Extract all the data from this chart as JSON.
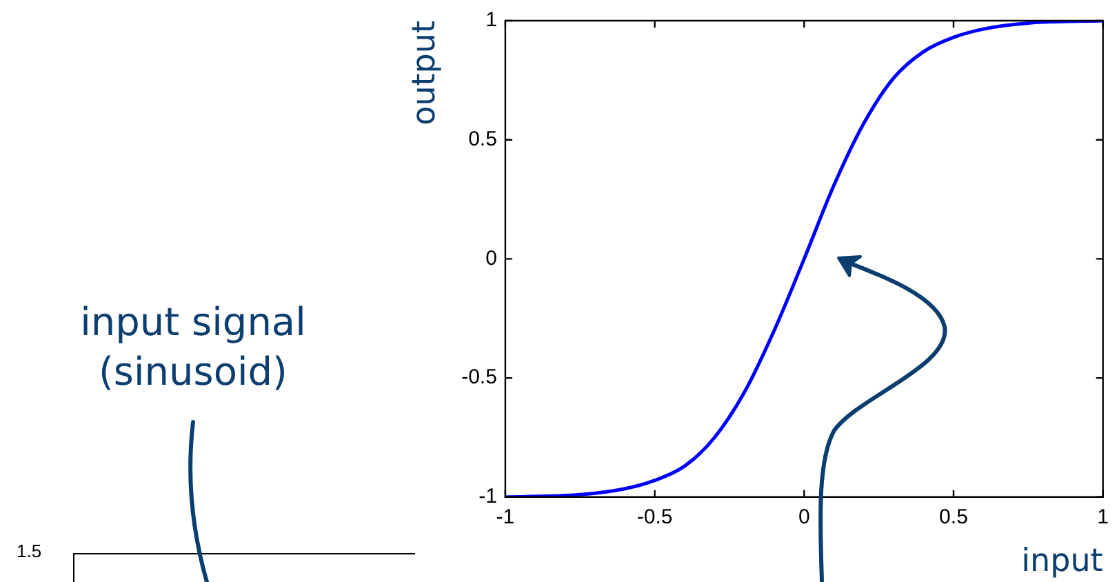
{
  "chart_data": [
    {
      "type": "line",
      "xlabel": "input",
      "ylabel": "output",
      "x": [
        -1,
        -0.75,
        -0.6,
        -0.5,
        -0.4,
        -0.3,
        -0.2,
        -0.1,
        0,
        0.1,
        0.2,
        0.3,
        0.4,
        0.5,
        0.6,
        0.75,
        1
      ],
      "series": [
        {
          "color": "#0000ff",
          "values": [
            -1,
            -0.99,
            -0.965,
            -0.93,
            -0.87,
            -0.75,
            -0.56,
            -0.3,
            0,
            0.31,
            0.57,
            0.76,
            0.87,
            0.93,
            0.965,
            0.99,
            1
          ]
        }
      ],
      "xlim": [
        -1,
        1
      ],
      "xticks": [
        -1,
        -0.5,
        0,
        0.5,
        1
      ],
      "ylim": [
        -1,
        1
      ],
      "yticks": [
        -1,
        -0.5,
        0,
        0.5,
        1
      ],
      "grid": false,
      "legend": false
    },
    {
      "type": "other",
      "annotations": [
        "input signal\n(sinusoid)",
        "1.5"
      ]
    }
  ]
}
